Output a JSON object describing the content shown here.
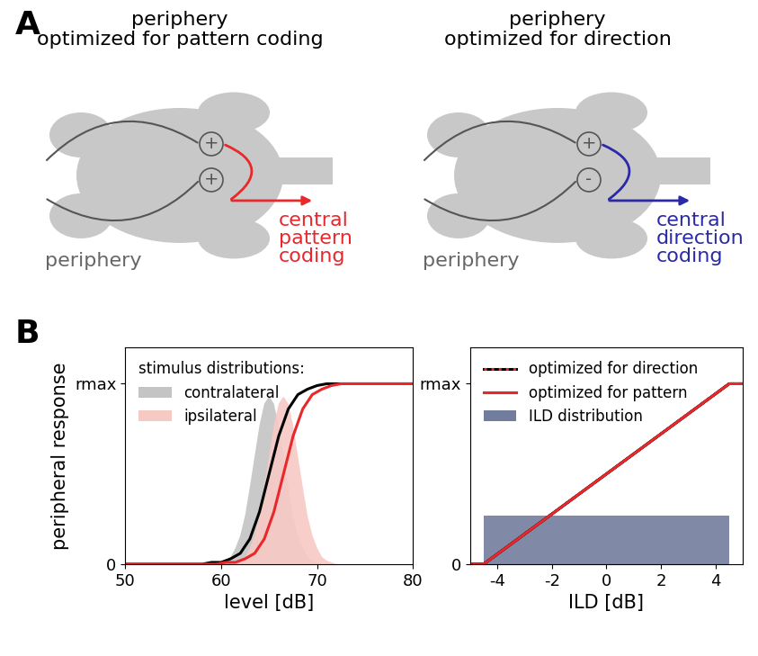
{
  "panel_labels": [
    "A",
    "B"
  ],
  "diagram": {
    "panels": [
      {
        "title": "periphery\noptimized for pattern coding",
        "signs": [
          "+",
          "+"
        ],
        "input_label": "periphery",
        "output_label": "central\npattern\ncoding",
        "color": "#e8282b"
      },
      {
        "title": "periphery\noptimized for direction",
        "signs": [
          "+",
          "-"
        ],
        "input_label": "periphery",
        "output_label": "central\ndirection\ncoding",
        "color": "#2a2aa8"
      }
    ]
  },
  "chart_data": [
    {
      "type": "line",
      "xlabel": "level [dB]",
      "ylabel": "peripheral response",
      "xlim": [
        50,
        80
      ],
      "xticks": [
        50,
        60,
        70,
        80
      ],
      "ylim": [
        0,
        1.2
      ],
      "yticks": [
        0,
        {
          "value": 1,
          "label": "rmax"
        }
      ],
      "legend": "upper left",
      "legend_title": "stimulus distributions:",
      "series": [
        {
          "name": "contralateral",
          "type": "area",
          "color": "#c4c4c4",
          "x": [
            59,
            59.5,
            60,
            60.5,
            61,
            61.5,
            62,
            62.5,
            63,
            63.5,
            64,
            64.5,
            65,
            65.5,
            66,
            66.5,
            67,
            67.5,
            68,
            68.5,
            69,
            69.5,
            70,
            70.5,
            71
          ],
          "values": [
            0,
            0,
            0.01,
            0.02,
            0.04,
            0.09,
            0.16,
            0.27,
            0.43,
            0.6,
            0.77,
            0.89,
            0.93,
            0.89,
            0.77,
            0.6,
            0.43,
            0.27,
            0.16,
            0.09,
            0.04,
            0.02,
            0.01,
            0,
            0
          ]
        },
        {
          "name": "ipsilateral",
          "type": "area",
          "color": "#f7c9c4",
          "x": [
            60.5,
            61,
            61.5,
            62,
            62.5,
            63,
            63.5,
            64,
            64.5,
            65,
            65.5,
            66,
            66.5,
            67,
            67.5,
            68,
            68.5,
            69,
            69.5,
            70,
            70.5,
            71,
            71.5,
            72,
            72.5
          ],
          "values": [
            0,
            0,
            0.01,
            0.02,
            0.04,
            0.09,
            0.16,
            0.27,
            0.43,
            0.6,
            0.77,
            0.89,
            0.93,
            0.89,
            0.77,
            0.6,
            0.43,
            0.27,
            0.16,
            0.09,
            0.04,
            0.02,
            0.01,
            0,
            0
          ]
        },
        {
          "type": "line",
          "color": "#000000",
          "x": [
            50,
            58,
            59,
            60,
            61,
            62,
            63,
            64,
            65,
            66,
            67,
            68,
            69,
            70,
            71,
            72,
            73,
            80
          ],
          "values": [
            0,
            0,
            0.01,
            0.01,
            0.03,
            0.06,
            0.14,
            0.29,
            0.5,
            0.71,
            0.86,
            0.94,
            0.97,
            0.99,
            1,
            1,
            1,
            1
          ]
        },
        {
          "type": "line",
          "color": "#e8282b",
          "x": [
            50,
            59.5,
            60.5,
            61.5,
            62.5,
            63.5,
            64.5,
            65.5,
            66.5,
            67.5,
            68.5,
            69.5,
            70.5,
            71.5,
            72.5,
            73.5,
            74.5,
            80
          ],
          "values": [
            0,
            0,
            0.01,
            0.01,
            0.03,
            0.06,
            0.14,
            0.29,
            0.5,
            0.71,
            0.86,
            0.94,
            0.97,
            0.99,
            1,
            1,
            1,
            1
          ]
        }
      ]
    },
    {
      "type": "line",
      "xlabel": "ILD [dB]",
      "xlim": [
        -5,
        5
      ],
      "xticks": [
        -4,
        -2,
        0,
        2,
        4
      ],
      "ylim": [
        0,
        1.2
      ],
      "yticks": [
        0,
        {
          "value": 1,
          "label": "rmax"
        }
      ],
      "legend": "upper left",
      "series": [
        {
          "name": "optimized for direction",
          "type": "line",
          "color": "#e8282b",
          "line_style": "dotted",
          "x": [
            -5,
            -4.5,
            4.5,
            5
          ],
          "values": [
            0,
            0,
            1,
            1
          ]
        },
        {
          "name": "optimized for pattern",
          "type": "line",
          "color": "#e8282b",
          "line_style": "solid",
          "x": [
            -5,
            -4.5,
            4.5,
            5
          ],
          "values": [
            0,
            0,
            1,
            1
          ]
        },
        {
          "name": "ILD distribution",
          "type": "area",
          "color": "#727c9c",
          "x": [
            -4.5,
            4.5
          ],
          "values": [
            0.27,
            0.27
          ]
        }
      ]
    }
  ]
}
